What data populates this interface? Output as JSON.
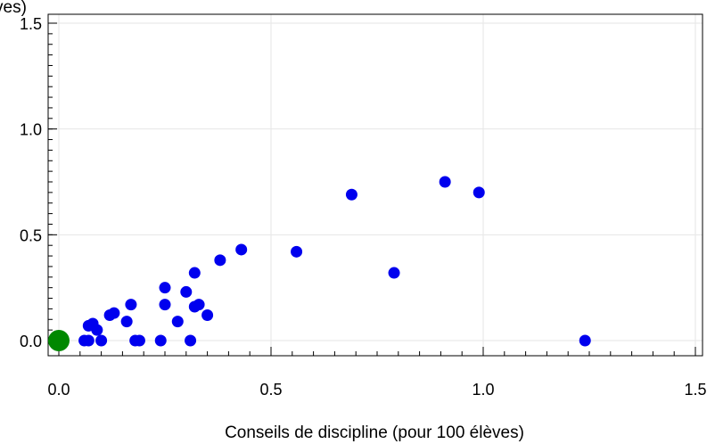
{
  "chart_data": {
    "type": "scatter",
    "xlabel": "Conseils de discipline (pour 100 élèves)",
    "ylabel": "ves)",
    "xlim": [
      0.0,
      1.5
    ],
    "ylim": [
      0.0,
      1.5
    ],
    "xticks": [
      "0.0",
      "0.5",
      "1.0",
      "1.5"
    ],
    "yticks": [
      "0.0",
      "0.5",
      "1.0",
      "1.5"
    ],
    "grid": true,
    "colors": {
      "points": "#0000ee",
      "highlight": "#008800",
      "grid": "#e6e6e6"
    },
    "series": [
      {
        "points": [
          [
            0.06,
            0.0
          ],
          [
            0.07,
            0.07
          ],
          [
            0.08,
            0.08
          ],
          [
            0.07,
            0.0
          ],
          [
            0.09,
            0.05
          ],
          [
            0.1,
            0.0
          ],
          [
            0.12,
            0.12
          ],
          [
            0.13,
            0.13
          ],
          [
            0.16,
            0.09
          ],
          [
            0.17,
            0.17
          ],
          [
            0.18,
            0.0
          ],
          [
            0.19,
            0.0
          ],
          [
            0.24,
            0.0
          ],
          [
            0.25,
            0.17
          ],
          [
            0.25,
            0.25
          ],
          [
            0.28,
            0.09
          ],
          [
            0.3,
            0.23
          ],
          [
            0.31,
            0.0
          ],
          [
            0.32,
            0.16
          ],
          [
            0.32,
            0.32
          ],
          [
            0.33,
            0.17
          ],
          [
            0.35,
            0.12
          ],
          [
            0.38,
            0.38
          ],
          [
            0.43,
            0.43
          ],
          [
            0.56,
            0.42
          ],
          [
            0.69,
            0.69
          ],
          [
            0.79,
            0.32
          ],
          [
            0.91,
            0.75
          ],
          [
            0.99,
            0.7
          ],
          [
            1.24,
            0.0
          ]
        ]
      },
      {
        "points": [
          [
            0.0,
            0.0
          ]
        ]
      }
    ]
  }
}
